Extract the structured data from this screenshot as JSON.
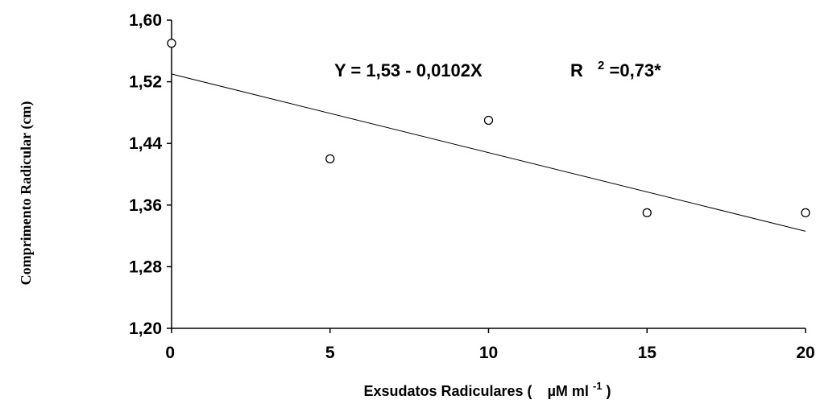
{
  "chart_data": {
    "type": "scatter",
    "title": "",
    "xlabel": "Exsudatos Radiculares (",
    "xlabel_unit": "µM ml",
    "xlabel_unit_exp": "-1",
    "xlabel_close": ")",
    "ylabel": "Comprimento Radicular (cm)",
    "xlim": [
      0,
      20
    ],
    "ylim": [
      1.2,
      1.6
    ],
    "x_ticks": [
      0,
      5,
      10,
      15,
      20
    ],
    "x_tick_labels": [
      "0",
      "5",
      "10",
      "15",
      "20"
    ],
    "y_ticks": [
      1.2,
      1.28,
      1.36,
      1.44,
      1.52,
      1.6
    ],
    "y_tick_labels": [
      "1,20",
      "1,28",
      "1,36",
      "1,44",
      "1,52",
      "1,60"
    ],
    "grid": false,
    "legend": "none",
    "series": [
      {
        "marker": "open-circle",
        "points": [
          {
            "x": 0,
            "y": 1.57
          },
          {
            "x": 5,
            "y": 1.42
          },
          {
            "x": 10,
            "y": 1.47
          },
          {
            "x": 15,
            "y": 1.35
          },
          {
            "x": 20,
            "y": 1.35
          }
        ]
      }
    ],
    "trendline": {
      "intercept": 1.53,
      "slope": -0.0102,
      "x_range": [
        0,
        20
      ]
    },
    "annotation": {
      "equation": "Y = 1,53 - 0,0102X",
      "r_label": "R",
      "r_exp": "2",
      "r_value": "=0,73*"
    }
  }
}
